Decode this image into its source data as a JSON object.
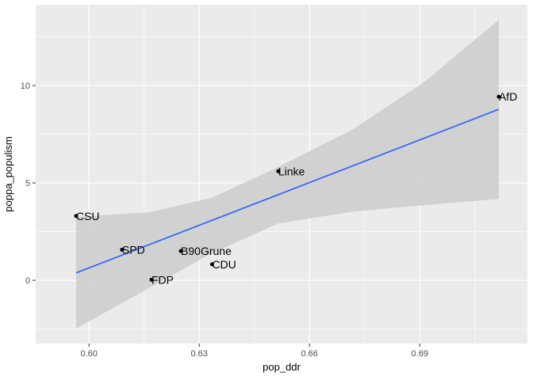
{
  "chart_data": {
    "type": "scatter",
    "title": "",
    "xlabel": "pop_ddr",
    "ylabel": "poppa_populism",
    "xlim": [
      0.5855,
      0.7193
    ],
    "ylim": [
      -3.25,
      14.15
    ],
    "x_ticks": [
      0.6,
      0.63,
      0.66,
      0.69
    ],
    "x_tick_labels": [
      "0.60",
      "0.63",
      "0.66",
      "0.69"
    ],
    "y_ticks": [
      0,
      5,
      10
    ],
    "y_tick_labels": [
      "0",
      "5",
      "10"
    ],
    "grid": true,
    "points": [
      {
        "label": "CSU",
        "x": 0.5965,
        "y": 3.3
      },
      {
        "label": "SPD",
        "x": 0.609,
        "y": 1.57
      },
      {
        "label": "FDP",
        "x": 0.617,
        "y": 0.03
      },
      {
        "label": "B90Grune",
        "x": 0.625,
        "y": 1.5
      },
      {
        "label": "CDU",
        "x": 0.6335,
        "y": 0.82
      },
      {
        "label": "Linke",
        "x": 0.6515,
        "y": 5.6
      },
      {
        "label": "AfD",
        "x": 0.7115,
        "y": 9.43
      }
    ],
    "fit_line": {
      "x": [
        0.5965,
        0.7115
      ],
      "y": [
        0.38,
        8.78
      ]
    },
    "confidence_band": {
      "x": [
        0.5965,
        0.6165,
        0.6335,
        0.6515,
        0.6715,
        0.6915,
        0.7115
      ],
      "lower": [
        -2.48,
        -0.38,
        1.4,
        2.92,
        3.52,
        3.86,
        4.18
      ],
      "upper": [
        3.25,
        3.5,
        4.24,
        5.82,
        7.72,
        10.22,
        13.38
      ]
    },
    "colors": {
      "panel": "#ebebeb",
      "grid": "#ffffff",
      "band": "#cccccc",
      "line": "#3366ff",
      "point": "#000000"
    }
  }
}
